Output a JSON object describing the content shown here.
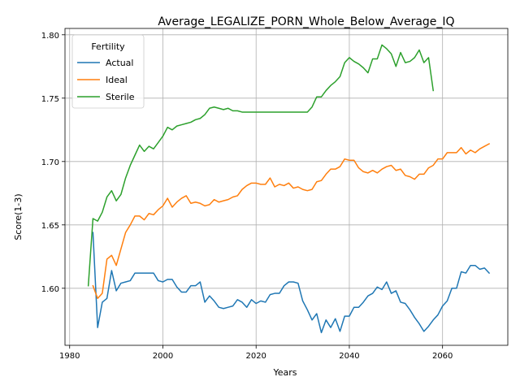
{
  "chart_data": {
    "type": "line",
    "title": "Average_LEGALIZE_PORN_Whole_Below_Average_IQ",
    "xlabel": "Years",
    "ylabel": "Score(1-3)",
    "xlim": [
      1979,
      2074
    ],
    "ylim": [
      1.555,
      1.805
    ],
    "xticks": [
      1980,
      2000,
      2020,
      2040,
      2060
    ],
    "yticks": [
      1.6,
      1.65,
      1.7,
      1.75,
      1.8
    ],
    "grid": true,
    "legend": {
      "title": "Fertility",
      "placement": "top-left"
    },
    "series": [
      {
        "name": "Actual",
        "color": "#1f77b4",
        "x": [
          1985,
          1986,
          1987,
          1988,
          1989,
          1990,
          1991,
          1992,
          1993,
          1994,
          1995,
          1996,
          1997,
          1998,
          1999,
          2000,
          2001,
          2002,
          2003,
          2004,
          2005,
          2006,
          2007,
          2008,
          2009,
          2010,
          2011,
          2012,
          2013,
          2014,
          2015,
          2016,
          2017,
          2018,
          2019,
          2020,
          2021,
          2022,
          2023,
          2024,
          2025,
          2026,
          2027,
          2028,
          2029,
          2030,
          2031,
          2032,
          2033,
          2034,
          2035,
          2036,
          2037,
          2038,
          2039,
          2040,
          2041,
          2042,
          2043,
          2044,
          2045,
          2046,
          2047,
          2048,
          2049,
          2050,
          2051,
          2052,
          2053,
          2054,
          2055,
          2056,
          2057,
          2058,
          2059,
          2060,
          2061,
          2062,
          2063,
          2064,
          2065,
          2066,
          2067,
          2068,
          2069,
          2070
        ],
        "values": [
          1.644,
          1.569,
          1.589,
          1.592,
          1.614,
          1.598,
          1.604,
          1.605,
          1.606,
          1.612,
          1.612,
          1.612,
          1.612,
          1.612,
          1.606,
          1.605,
          1.607,
          1.607,
          1.601,
          1.597,
          1.597,
          1.602,
          1.602,
          1.605,
          1.589,
          1.594,
          1.59,
          1.585,
          1.584,
          1.585,
          1.586,
          1.591,
          1.589,
          1.585,
          1.591,
          1.588,
          1.59,
          1.589,
          1.595,
          1.596,
          1.596,
          1.602,
          1.605,
          1.605,
          1.604,
          1.59,
          1.583,
          1.575,
          1.58,
          1.565,
          1.575,
          1.569,
          1.576,
          1.566,
          1.578,
          1.578,
          1.585,
          1.585,
          1.589,
          1.594,
          1.596,
          1.601,
          1.599,
          1.605,
          1.596,
          1.598,
          1.589,
          1.588,
          1.583,
          1.577,
          1.572,
          1.566,
          1.57,
          1.575,
          1.579,
          1.586,
          1.59,
          1.6,
          1.6,
          1.613,
          1.612,
          1.618,
          1.618,
          1.615,
          1.616,
          1.612
        ]
      },
      {
        "name": "Ideal",
        "color": "#ff7f0e",
        "x": [
          1985,
          1986,
          1987,
          1988,
          1989,
          1990,
          1991,
          1992,
          1993,
          1994,
          1995,
          1996,
          1997,
          1998,
          1999,
          2000,
          2001,
          2002,
          2003,
          2004,
          2005,
          2006,
          2007,
          2008,
          2009,
          2010,
          2011,
          2012,
          2013,
          2014,
          2015,
          2016,
          2017,
          2018,
          2019,
          2020,
          2021,
          2022,
          2023,
          2024,
          2025,
          2026,
          2027,
          2028,
          2029,
          2030,
          2031,
          2032,
          2033,
          2034,
          2035,
          2036,
          2037,
          2038,
          2039,
          2040,
          2041,
          2042,
          2043,
          2044,
          2045,
          2046,
          2047,
          2048,
          2049,
          2050,
          2051,
          2052,
          2053,
          2054,
          2055,
          2056,
          2057,
          2058,
          2059,
          2060,
          2061,
          2062,
          2063,
          2064,
          2065,
          2066,
          2067,
          2068,
          2069,
          2070
        ],
        "values": [
          1.602,
          1.592,
          1.596,
          1.623,
          1.626,
          1.618,
          1.631,
          1.644,
          1.65,
          1.657,
          1.657,
          1.654,
          1.659,
          1.658,
          1.662,
          1.665,
          1.671,
          1.664,
          1.668,
          1.671,
          1.673,
          1.667,
          1.668,
          1.667,
          1.665,
          1.666,
          1.67,
          1.668,
          1.669,
          1.67,
          1.672,
          1.673,
          1.678,
          1.681,
          1.683,
          1.683,
          1.682,
          1.682,
          1.687,
          1.68,
          1.682,
          1.681,
          1.683,
          1.679,
          1.68,
          1.678,
          1.677,
          1.678,
          1.684,
          1.685,
          1.69,
          1.694,
          1.694,
          1.696,
          1.702,
          1.701,
          1.701,
          1.695,
          1.692,
          1.691,
          1.693,
          1.691,
          1.694,
          1.696,
          1.697,
          1.693,
          1.694,
          1.689,
          1.688,
          1.686,
          1.69,
          1.69,
          1.695,
          1.697,
          1.702,
          1.702,
          1.707,
          1.707,
          1.707,
          1.711,
          1.706,
          1.709,
          1.707,
          1.71,
          1.712,
          1.714
        ]
      },
      {
        "name": "Sterile",
        "color": "#2ca02c",
        "x": [
          1984,
          1985,
          1986,
          1987,
          1988,
          1989,
          1990,
          1991,
          1992,
          1993,
          1994,
          1995,
          1996,
          1997,
          1998,
          1999,
          2000,
          2001,
          2002,
          2003,
          2004,
          2005,
          2006,
          2007,
          2008,
          2009,
          2010,
          2011,
          2012,
          2013,
          2014,
          2015,
          2016,
          2017,
          2018,
          2019,
          2020,
          2021,
          2022,
          2023,
          2024,
          2025,
          2026,
          2027,
          2028,
          2029,
          2030,
          2031,
          2032,
          2033,
          2034,
          2035,
          2036,
          2037,
          2038,
          2039,
          2040,
          2041,
          2042,
          2043,
          2044,
          2045,
          2046,
          2047,
          2048,
          2049,
          2050,
          2051,
          2052,
          2053,
          2054,
          2055,
          2056,
          2057,
          2058
        ],
        "values": [
          1.602,
          1.655,
          1.653,
          1.66,
          1.672,
          1.677,
          1.669,
          1.674,
          1.687,
          1.697,
          1.705,
          1.713,
          1.708,
          1.712,
          1.71,
          1.715,
          1.72,
          1.727,
          1.725,
          1.728,
          1.729,
          1.73,
          1.731,
          1.733,
          1.734,
          1.737,
          1.742,
          1.743,
          1.742,
          1.741,
          1.742,
          1.74,
          1.74,
          1.739,
          1.739,
          1.739,
          1.739,
          1.739,
          1.739,
          1.739,
          1.739,
          1.739,
          1.739,
          1.739,
          1.739,
          1.739,
          1.739,
          1.739,
          1.743,
          1.751,
          1.751,
          1.756,
          1.76,
          1.763,
          1.767,
          1.778,
          1.782,
          1.779,
          1.777,
          1.774,
          1.77,
          1.781,
          1.781,
          1.792,
          1.789,
          1.785,
          1.775,
          1.786,
          1.778,
          1.779,
          1.782,
          1.788,
          1.778,
          1.782,
          1.756
        ]
      }
    ]
  }
}
